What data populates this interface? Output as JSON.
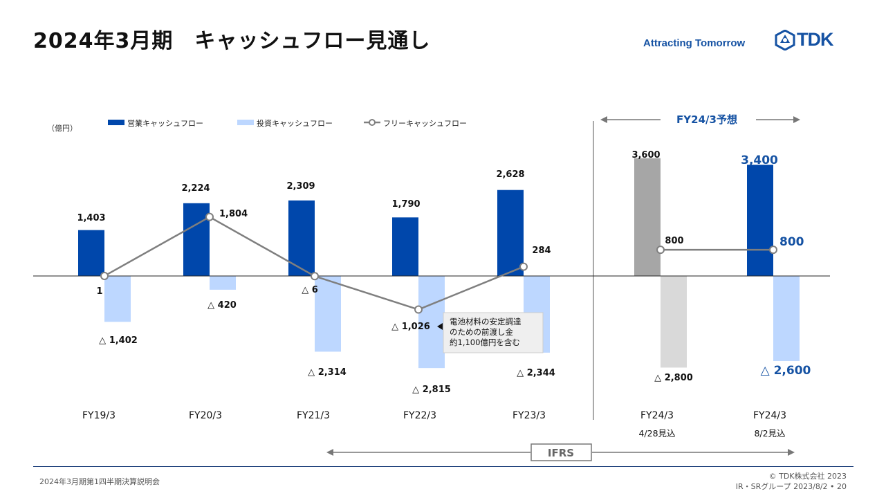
{
  "header": {
    "title": "2024年3月期　キャッシュフロー見通し",
    "tagline": "Attracting Tomorrow",
    "logo_text": "TDK"
  },
  "footer": {
    "left": "2024年3月期第1四半期決算説明会",
    "copyright": "© TDK株式会社 2023",
    "page_info": "IR・SRグループ  2023/8/2 • 20"
  },
  "colors": {
    "operating": "#0047ab",
    "investing": "#bdd7ff",
    "free": "#7f7f7f",
    "forecast_operating": "#a6a6a6",
    "forecast_investing": "#d9d9d9",
    "highlight_text": "#1552a3"
  },
  "chart_data": {
    "type": "bar",
    "unit_label": "（億円）",
    "legend": [
      "営業キャッシュフロー",
      "投資キャッシュフロー",
      "フリーキャッシュフロー"
    ],
    "categories": [
      "FY19/3",
      "FY20/3",
      "FY21/3",
      "FY22/3",
      "FY23/3",
      "FY24/3",
      "FY24/3"
    ],
    "sublabels": [
      "",
      "",
      "",
      "",
      "",
      "4/28見込",
      "8/2見込"
    ],
    "series": [
      {
        "name": "営業キャッシュフロー",
        "values": [
          1403,
          2224,
          2309,
          1790,
          2628,
          3600,
          3400
        ],
        "labels": [
          "1,403",
          "2,224",
          "2,309",
          "1,790",
          "2,628",
          "3,600",
          "3,400"
        ]
      },
      {
        "name": "投資キャッシュフロー",
        "values": [
          -1402,
          -420,
          -2314,
          -2815,
          -2344,
          -2800,
          -2600
        ],
        "labels": [
          "△ 1,402",
          "△ 420",
          "△ 2,314",
          "△ 2,815",
          "△ 2,344",
          "△ 2,800",
          "△ 2,600"
        ]
      },
      {
        "name": "フリーキャッシュフロー",
        "values": [
          1,
          1804,
          -6,
          -1026,
          284,
          800,
          800
        ],
        "labels": [
          "1",
          "1,804",
          "△ 6",
          "△ 1,026",
          "284",
          "800",
          "800"
        ]
      }
    ],
    "forecast_header": "FY24/3予想",
    "ifrs_label": "IFRS",
    "annotation": "電池材料の安定調達\nのための前渡し金\n約1,100億円を含む"
  }
}
